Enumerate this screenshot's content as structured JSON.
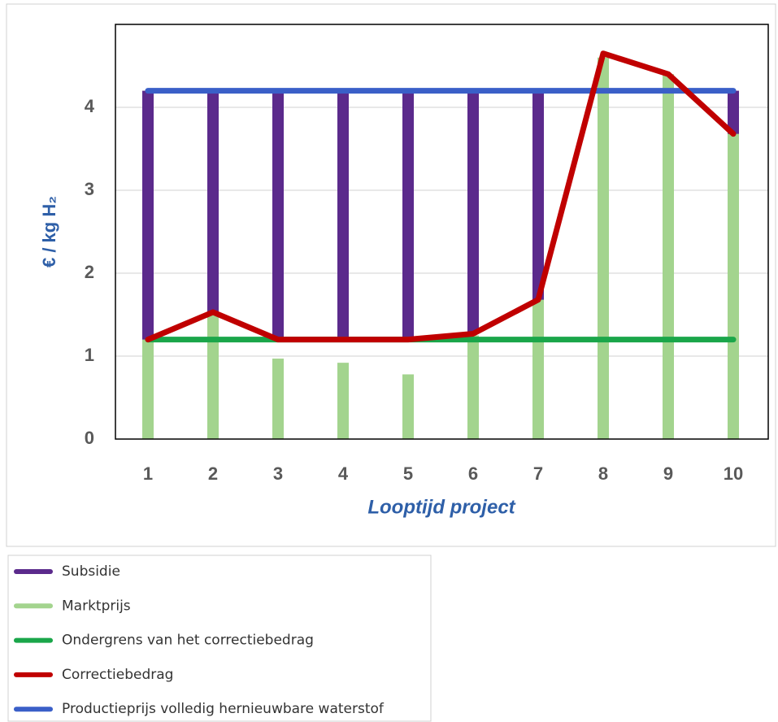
{
  "chart_data": {
    "type": "combo",
    "ylabel": "€ / kg H₂",
    "xlabel": "Looptijd project",
    "categories": [
      "1",
      "2",
      "3",
      "4",
      "5",
      "6",
      "7",
      "8",
      "9",
      "10"
    ],
    "ylim": [
      0,
      5
    ],
    "yticks": [
      0,
      1,
      2,
      3,
      4
    ],
    "grid": true,
    "series": [
      {
        "name": "Subsidie",
        "type": "bar",
        "color": "#5b2a8c",
        "values": [
          3.0,
          2.67,
          3.0,
          3.0,
          3.0,
          2.93,
          2.52,
          0,
          0,
          0.52
        ]
      },
      {
        "name": "Marktprijs",
        "type": "bar",
        "color": "#a3d48e",
        "values": [
          1.2,
          1.5,
          0.97,
          0.92,
          0.78,
          1.25,
          1.7,
          4.6,
          4.4,
          3.7
        ]
      },
      {
        "name": "Ondergrens van het correctiebedrag",
        "type": "line",
        "color": "#1aa64a",
        "values": [
          1.2,
          1.2,
          1.2,
          1.2,
          1.2,
          1.2,
          1.2,
          1.2,
          1.2,
          1.2
        ]
      },
      {
        "name": "Correctiebedrag",
        "type": "line",
        "color": "#c00000",
        "values": [
          1.2,
          1.53,
          1.2,
          1.2,
          1.2,
          1.27,
          1.68,
          4.65,
          4.4,
          3.68
        ]
      },
      {
        "name": "Productieprijs volledig hernieuwbare waterstof",
        "type": "line",
        "color": "#3a5fc8",
        "values": [
          4.2,
          4.2,
          4.2,
          4.2,
          4.2,
          4.2,
          4.2,
          4.2,
          4.2,
          4.2
        ]
      }
    ]
  }
}
